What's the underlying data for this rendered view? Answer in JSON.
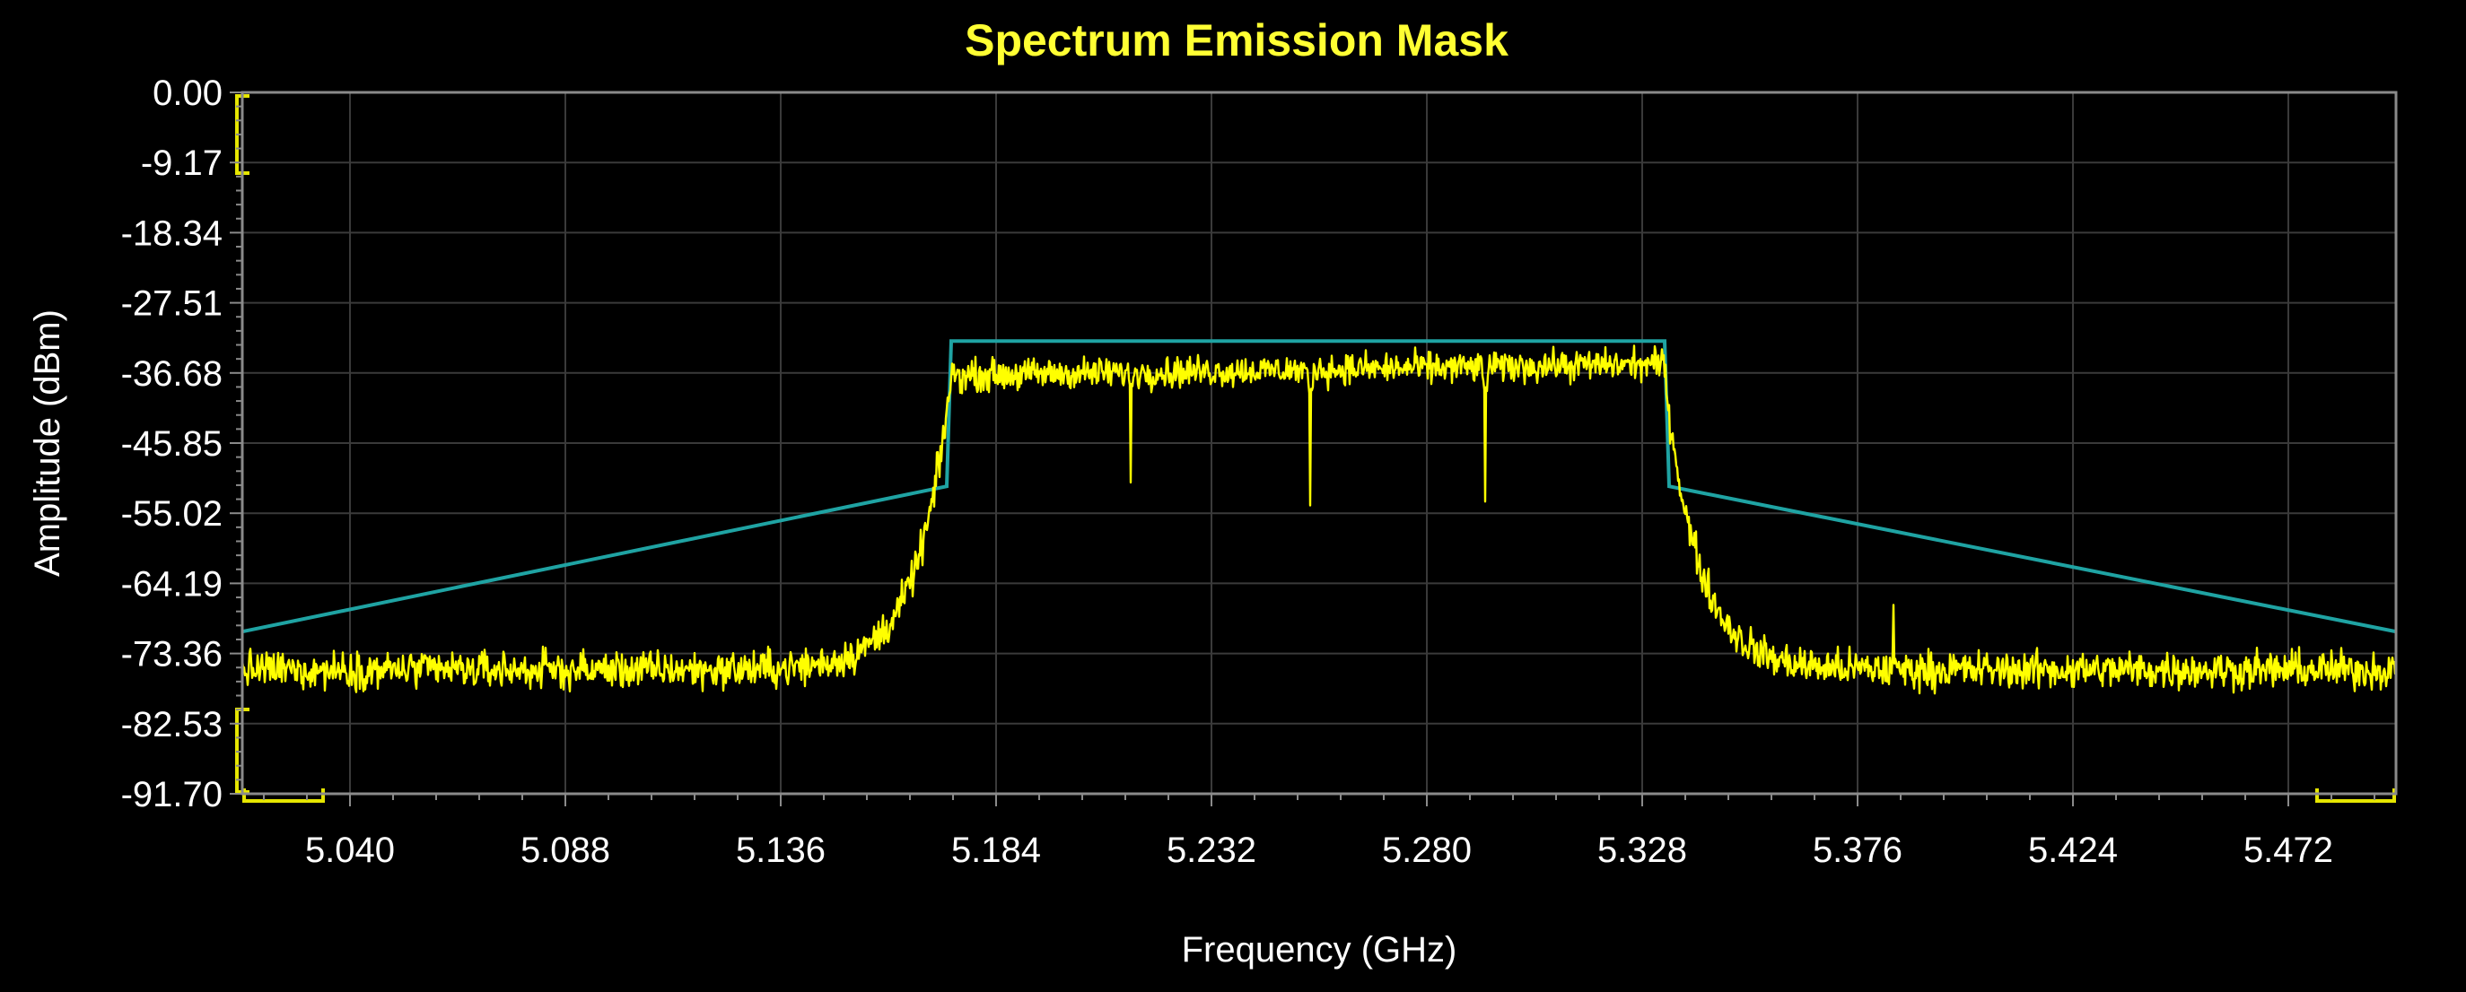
{
  "chart_data": {
    "type": "line",
    "title": "Spectrum Emission Mask",
    "xlabel": "Frequency (GHz)",
    "ylabel": "Amplitude (dBm)",
    "xlim": [
      5.016,
      5.496
    ],
    "ylim": [
      -91.7,
      0.0
    ],
    "x_ticks": [
      5.04,
      5.088,
      5.136,
      5.184,
      5.232,
      5.28,
      5.328,
      5.376,
      5.424,
      5.472
    ],
    "x_tick_labels": [
      "5.040",
      "5.088",
      "5.136",
      "5.184",
      "5.232",
      "5.280",
      "5.328",
      "5.376",
      "5.424",
      "5.472"
    ],
    "y_ticks": [
      0.0,
      -9.17,
      -18.34,
      -27.51,
      -36.68,
      -45.85,
      -55.02,
      -64.19,
      -73.36,
      -82.53,
      -91.7
    ],
    "y_tick_labels": [
      "0.00",
      "-9.17",
      "-18.34",
      "-27.51",
      "-36.68",
      "-45.85",
      "-55.02",
      "-64.19",
      "-73.36",
      "-82.53",
      "-91.70"
    ],
    "grid": true,
    "series": [
      {
        "color": "#1fa3a3",
        "points": [
          [
            5.016,
            -70.5
          ],
          [
            5.173,
            -51.5
          ],
          [
            5.174,
            -32.5
          ],
          [
            5.333,
            -32.5
          ],
          [
            5.334,
            -51.5
          ],
          [
            5.496,
            -70.5
          ]
        ]
      },
      {
        "color": "#ffff00",
        "noise_floor_dbm": -75.5,
        "in_band_level_dbm": -37.0,
        "in_band_range_ghz": [
          5.174,
          5.333
        ],
        "dips": [
          {
            "x": 5.214,
            "y": -51.0
          },
          {
            "x": 5.254,
            "y": -54.0
          },
          {
            "x": 5.293,
            "y": -53.5
          }
        ],
        "spur": {
          "x": 5.384,
          "y": -67.0
        }
      }
    ]
  },
  "colors": {
    "background": "#000000",
    "plot_border": "#8a8a8a",
    "grid": "#3a3a3a",
    "title": "#ffff33",
    "marker": "#e6e600"
  }
}
